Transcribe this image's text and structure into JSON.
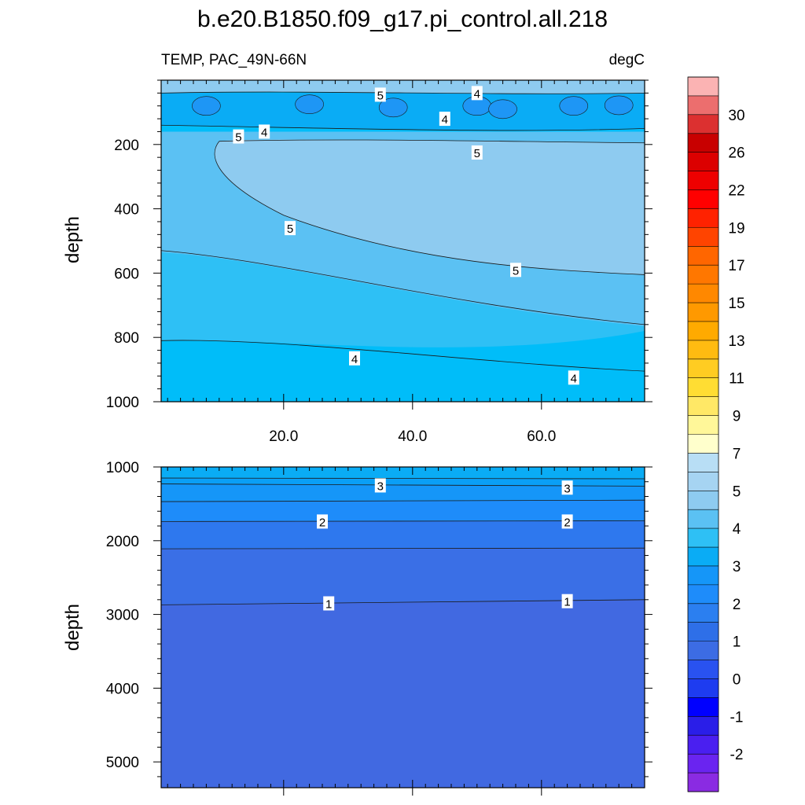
{
  "chart_data": {
    "type": "contour",
    "title": "b.e20.B1850.f09_g17.pi_control.all.218",
    "variable_label": "TEMP, PAC_49N-66N",
    "units_label": "degC",
    "x_tick_labels": [
      "20.0",
      "40.0",
      "60.0"
    ],
    "x_ticks": [
      20,
      40,
      60
    ],
    "x_range": [
      1,
      76
    ],
    "upper_panel": {
      "ylabel": "depth",
      "ylim": [
        0,
        1000
      ],
      "y_ticks": [
        200,
        400,
        600,
        800,
        1000
      ],
      "y_tick_labels": [
        "200",
        "400",
        "600",
        "800",
        "1000"
      ],
      "layers_top_down": [
        {
          "range": "5-6",
          "color": "#8ecbf0",
          "depth_start": 0
        },
        {
          "range": "3-4",
          "color": "#0aacf5",
          "depth_start": 40
        },
        {
          "range": "4-5",
          "color": "#2ec0f5",
          "depth_start": 100
        },
        {
          "range": "5-6 (core)",
          "color": "#8ecbf0",
          "depth_start": 190
        },
        {
          "range": "4.5-5",
          "color": "#5bc1f3",
          "depth_start": 350
        },
        {
          "range": "4-4.5",
          "color": "#2ec0f5",
          "depth_start": 560
        },
        {
          "range": "3.5-4",
          "color": "#00bdf9",
          "depth_start": 780
        }
      ],
      "contour_labels": [
        {
          "text": "5",
          "x": 35,
          "depth": 45
        },
        {
          "text": "4",
          "x": 50,
          "depth": 40
        },
        {
          "text": "4",
          "x": 45,
          "depth": 120
        },
        {
          "text": "5",
          "x": 13,
          "depth": 175
        },
        {
          "text": "4",
          "x": 17,
          "depth": 160
        },
        {
          "text": "5",
          "x": 50,
          "depth": 225
        },
        {
          "text": "5",
          "x": 21,
          "depth": 460
        },
        {
          "text": "5",
          "x": 56,
          "depth": 590
        },
        {
          "text": "4",
          "x": 31,
          "depth": 865
        },
        {
          "text": "4",
          "x": 65,
          "depth": 925
        }
      ]
    },
    "lower_panel": {
      "ylabel": "depth",
      "ylim": [
        1000,
        5350
      ],
      "y_ticks": [
        1000,
        2000,
        3000,
        4000,
        5000
      ],
      "y_tick_labels": [
        "1000",
        "2000",
        "3000",
        "4000",
        "5000"
      ],
      "contours": [
        {
          "level": 3.5,
          "depths": [
            1150,
            1160
          ]
        },
        {
          "level": 3,
          "depths": [
            1230,
            1260
          ]
        },
        {
          "level": 2.5,
          "depths": [
            1470,
            1450
          ]
        },
        {
          "level": 2,
          "depths": [
            1740,
            1730
          ]
        },
        {
          "level": 1.5,
          "depths": [
            2110,
            2100
          ]
        },
        {
          "level": 1,
          "depths": [
            2870,
            2800
          ]
        }
      ],
      "layer_colors": [
        "#0aacf5",
        "#1596f8",
        "#1e8cfa",
        "#2b7ff0",
        "#2e6fe8",
        "#3c6ce4"
      ],
      "contour_labels": [
        {
          "text": "3",
          "x": 35,
          "depth": 1250
        },
        {
          "text": "3",
          "x": 64,
          "depth": 1280
        },
        {
          "text": "2",
          "x": 26,
          "depth": 1740
        },
        {
          "text": "2",
          "x": 64,
          "depth": 1740
        },
        {
          "text": "1",
          "x": 27,
          "depth": 2850
        },
        {
          "text": "1",
          "x": 64,
          "depth": 2820
        }
      ]
    },
    "colorbar": {
      "labels": [
        "30",
        "26",
        "22",
        "19",
        "17",
        "15",
        "13",
        "11",
        "9",
        "7",
        "5",
        "4",
        "3",
        "2",
        "1",
        "0",
        "-1",
        "-2"
      ],
      "colors_top_to_bottom": [
        "#fbb3b3",
        "#ec6e6e",
        "#dc3030",
        "#c80000",
        "#dc0000",
        "#ee0000",
        "#ff0000",
        "#ff2200",
        "#ff4400",
        "#ff6600",
        "#ff7700",
        "#ff8800",
        "#ff9900",
        "#ffaa00",
        "#ffbb11",
        "#ffcc22",
        "#ffdd33",
        "#ffe866",
        "#fff799",
        "#ffffcc",
        "#b8def5",
        "#a6d4f2",
        "#8ecbf0",
        "#5bc1f3",
        "#2ec0f5",
        "#0aacf5",
        "#1596f8",
        "#1e8cfa",
        "#2b7ff0",
        "#2e6fe8",
        "#3c6ce4",
        "#2952f0",
        "#1e3cf0",
        "#0000ff",
        "#2a1ee8",
        "#4a1ff0",
        "#6a24f0",
        "#8a2be2"
      ]
    }
  }
}
